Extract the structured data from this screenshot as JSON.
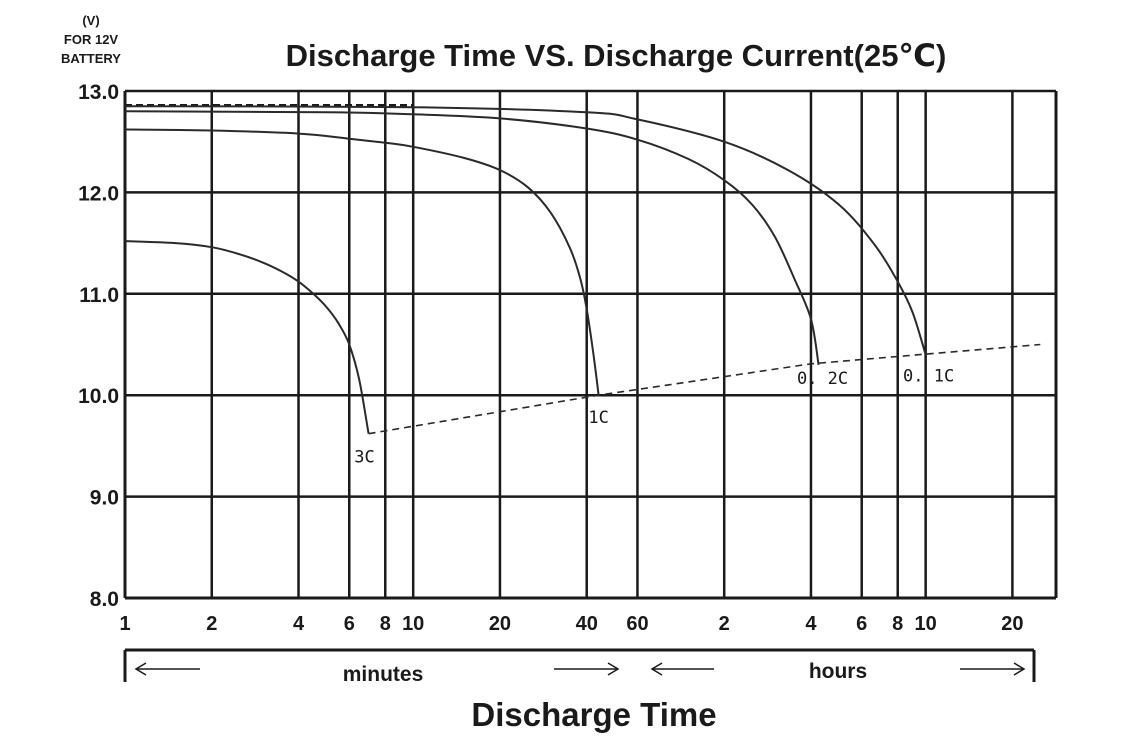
{
  "chart_data": {
    "type": "line",
    "title": "Discharge Time VS. Discharge Current(25℃)",
    "ylabel_lines": [
      "(V)",
      "FOR 12V",
      "BATTERY"
    ],
    "xlabel": "Discharge Time",
    "x_scale": "log",
    "x_unit_note": "x values in minutes (hours ticks = minutes/60)",
    "ylim": [
      8.0,
      13.0
    ],
    "y_ticks": [
      "13.0",
      "12.0",
      "11.0",
      "10.0",
      "9.0",
      "8.0"
    ],
    "y_tick_values": [
      13.0,
      12.0,
      11.0,
      10.0,
      9.0,
      8.0
    ],
    "x_ticks": [
      {
        "label": "1",
        "minutes": 1
      },
      {
        "label": "2",
        "minutes": 2
      },
      {
        "label": "4",
        "minutes": 4
      },
      {
        "label": "6",
        "minutes": 6
      },
      {
        "label": "8",
        "minutes": 8
      },
      {
        "label": "10",
        "minutes": 10
      },
      {
        "label": "20",
        "minutes": 20
      },
      {
        "label": "40",
        "minutes": 40
      },
      {
        "label": "60",
        "minutes": 60
      },
      {
        "label": "2",
        "minutes": 120
      },
      {
        "label": "4",
        "minutes": 240
      },
      {
        "label": "6",
        "minutes": 360
      },
      {
        "label": "8",
        "minutes": 480
      },
      {
        "label": "10",
        "minutes": 600
      },
      {
        "label": "20",
        "minutes": 1200
      }
    ],
    "xlim_minutes": [
      1,
      1700
    ],
    "grid": true,
    "range_labels": {
      "minutes": "minutes",
      "hours": "hours"
    },
    "series": [
      {
        "name": "3C",
        "x": [
          1,
          1.5,
          2,
          2.5,
          3,
          3.5,
          4,
          4.5,
          5,
          5.5,
          6,
          6.5,
          7
        ],
        "y": [
          11.52,
          11.5,
          11.46,
          11.39,
          11.31,
          11.22,
          11.12,
          11.0,
          10.87,
          10.71,
          10.5,
          10.15,
          9.62
        ]
      },
      {
        "name": "1C",
        "x": [
          1,
          2,
          4,
          6,
          8,
          10,
          15,
          20,
          25,
          30,
          35,
          38,
          40,
          42,
          44
        ],
        "y": [
          12.62,
          12.61,
          12.58,
          12.53,
          12.49,
          12.45,
          12.34,
          12.22,
          12.05,
          11.8,
          11.45,
          11.15,
          10.85,
          10.45,
          10.0
        ]
      },
      {
        "name": "0. 2C",
        "x": [
          1,
          5,
          10,
          20,
          40,
          60,
          90,
          120,
          150,
          180,
          210,
          240,
          255
        ],
        "y": [
          12.8,
          12.79,
          12.77,
          12.73,
          12.63,
          12.52,
          12.33,
          12.12,
          11.88,
          11.56,
          11.15,
          10.75,
          10.3
        ]
      },
      {
        "name": "0. 1C",
        "x": [
          1,
          10,
          40,
          60,
          120,
          200,
          300,
          400,
          480,
          540,
          600
        ],
        "y": [
          12.85,
          12.84,
          12.79,
          12.72,
          12.5,
          12.22,
          11.88,
          11.48,
          11.12,
          10.82,
          10.4
        ]
      }
    ],
    "cutoff_line": {
      "x": [
        7,
        44,
        240,
        1500
      ],
      "y": [
        9.62,
        10.0,
        10.31,
        10.5
      ]
    },
    "reference_line": {
      "y": 12.86,
      "x": [
        1,
        10
      ]
    }
  }
}
